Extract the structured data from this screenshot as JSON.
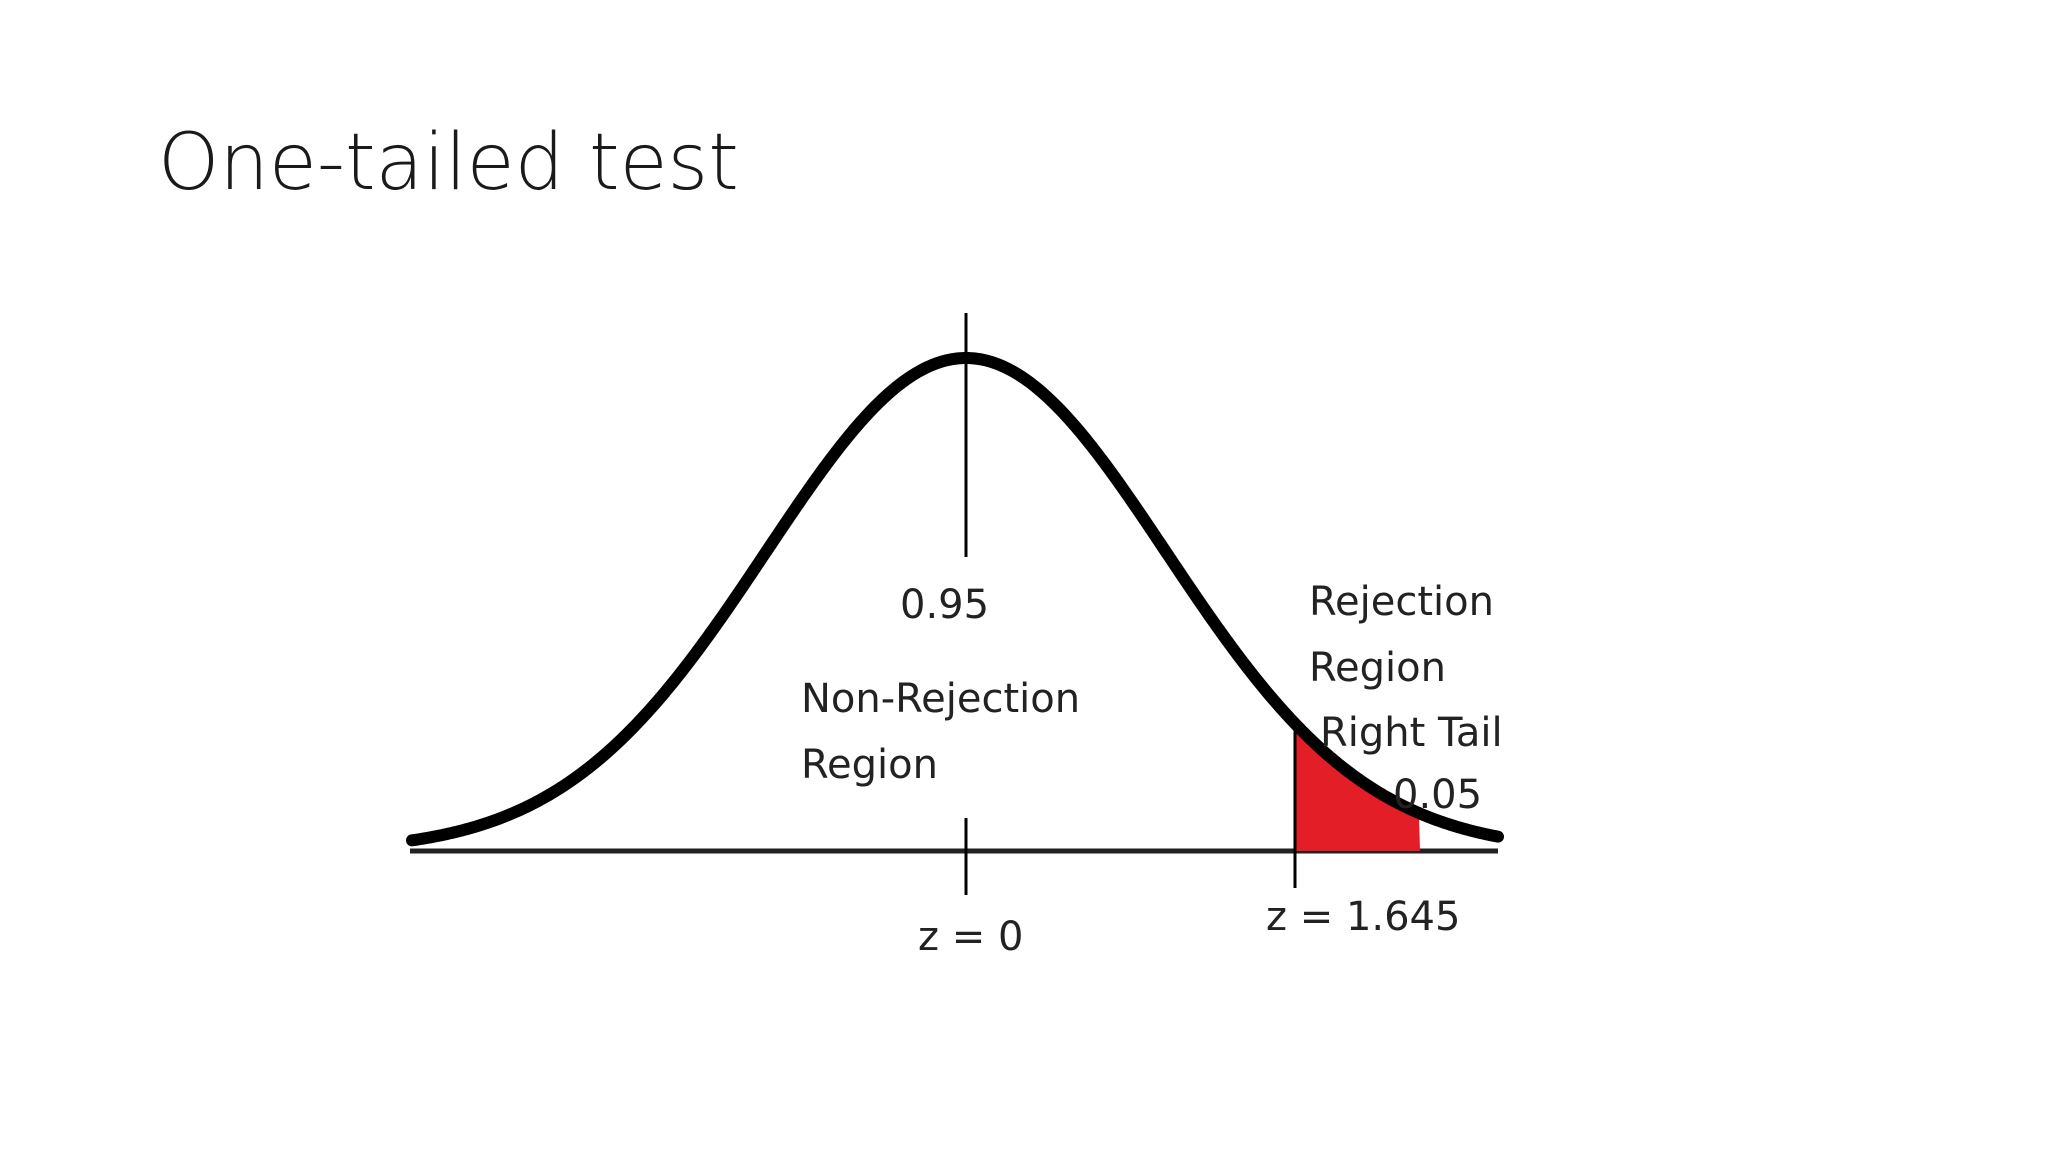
{
  "slide": {
    "title": "One-tailed test"
  },
  "diagram": {
    "mean_label": "0.95",
    "non_rejection_label": [
      "Non-Rejection",
      "Region"
    ],
    "rejection_label": [
      "Rejection",
      "Region",
      "Right Tail"
    ],
    "tail_probability_label": "0.05",
    "z_zero_label": "z = 0",
    "z_critical_label": "z = 1.645",
    "colors": {
      "curve": "#000000",
      "rejection_fill": "#e41e26",
      "text": "#222222"
    }
  }
}
